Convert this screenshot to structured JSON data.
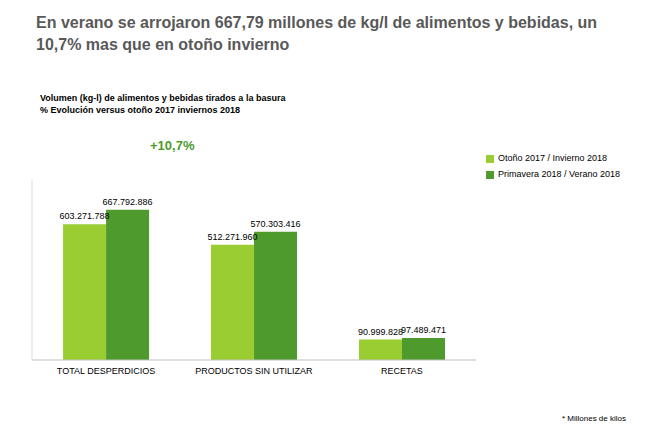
{
  "chart_data": {
    "type": "bar",
    "title": "En verano se arrojaron 667,79 millones de kg/l de alimentos y bebidas, un 10,7% mas que en otoño invierno",
    "subtitle": [
      "Volumen (kg-l) de alimentos y bebidas tirados a la basura",
      "% Evolución versus otoño 2017 inviernos 2018"
    ],
    "annotations": [
      "+10,7%"
    ],
    "footnote": "* Millones de kilos",
    "categories": [
      "TOTAL DESPERDICIOS",
      "PRODUCTOS SIN UTILIZAR",
      "RECETAS"
    ],
    "series": [
      {
        "name": "Otoño 2017 / Invierno 2018",
        "color": "#9acd32",
        "values": [
          603271788,
          512271960,
          90999828
        ],
        "value_labels": [
          "603.271.788",
          "512.271.960",
          "90.999.828"
        ]
      },
      {
        "name": "Primavera 2018 / Verano 2018",
        "color": "#4f9a2d",
        "values": [
          667792886,
          570303416,
          97489471
        ],
        "value_labels": [
          "667.792.886",
          "570.303.416",
          "97.489.471"
        ]
      }
    ],
    "ylim": [
      0,
      800000000
    ],
    "grid": false,
    "legend": "top-right",
    "data_labels": true,
    "tick_labels": "x"
  }
}
